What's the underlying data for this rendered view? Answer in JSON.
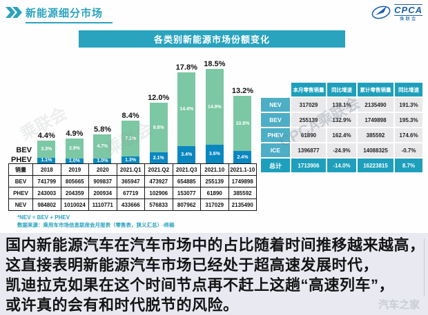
{
  "header": {
    "title": "新能源细分市场"
  },
  "logo": {
    "cpca": "CPCA",
    "sub": "乘联会"
  },
  "chart_data": {
    "type": "stacked-bar",
    "title": "各类别新能源市场份额变化",
    "categories": [
      "2018",
      "2019",
      "2020",
      "2021.Q1",
      "2021.Q2",
      "2021.Q3",
      "2021.10",
      "2021.1-10"
    ],
    "series": [
      {
        "name": "PHEV",
        "color": "#0b87c0",
        "values": [
          1.1,
          1.0,
          1.0,
          1.3,
          2.1,
          3.4,
          3.6,
          2.4
        ]
      },
      {
        "name": "BEV",
        "color": "#7cc7a4",
        "values": [
          3.3,
          3.9,
          4.7,
          7.1,
          9.8,
          14.4,
          14.9,
          10.8
        ]
      }
    ],
    "totals": [
      4.4,
      4.9,
      5.8,
      8.4,
      12.0,
      17.8,
      18.5,
      13.2
    ],
    "unit": "%",
    "ylim": [
      0,
      20
    ],
    "grid": false,
    "legend_position": "left-of-first-bar"
  },
  "left_table": {
    "corner": "销量",
    "headers": [
      "2018",
      "2019",
      "2020",
      "2021.Q1",
      "2021.Q2",
      "2021.Q3",
      "2021.10",
      "2021.1-10"
    ],
    "rows": [
      {
        "label": "BEV",
        "values": [
          "741799",
          "805665",
          "909837",
          "365947",
          "473927",
          "654885",
          "255139",
          "1749898"
        ]
      },
      {
        "label": "PHEV",
        "values": [
          "243003",
          "204359",
          "200934",
          "67719",
          "102906",
          "153077",
          "61890",
          "385592"
        ]
      },
      {
        "label": "NEV",
        "values": [
          "984802",
          "1010024",
          "1110771",
          "433666",
          "576833",
          "807962",
          "317029",
          "2135490"
        ]
      }
    ]
  },
  "footnote": {
    "line1": "*NEV = BEV + PHEV",
    "line2": "数据来源：乘用车市场信息联席会月报表（零售表，狭义汇总）-终稿"
  },
  "right_table": {
    "headers": [
      "",
      "本月零售销量",
      "同比增速",
      "累计零售销量",
      "同比增速"
    ],
    "rows": [
      {
        "label": "NEV",
        "cells": [
          "317029",
          "138.1%",
          "2135490",
          "191.3%"
        ],
        "type": "normal"
      },
      {
        "label": "BEV",
        "cells": [
          "255139",
          "132.9%",
          "1749898",
          "195.3%"
        ],
        "type": "normal"
      },
      {
        "label": "PHEV",
        "cells": [
          "61890",
          "162.4%",
          "385592",
          "174.6%"
        ],
        "type": "normal"
      },
      {
        "label": "ICE",
        "cells": [
          "1396877",
          "-24.9%",
          "14088325",
          "-0.7%"
        ],
        "type": "normal"
      },
      {
        "label": "总计",
        "cells": [
          "1713906",
          "-14.0%",
          "16223815",
          "8.7%"
        ],
        "type": "total"
      }
    ]
  },
  "commentary": {
    "lines": [
      "国内新能源汽车在汽车市场中的占比随着时间推移越来越高，",
      "这直接表明新能源汽车市场已经处于超高速发展时代，",
      "凯迪拉克如果在这个时间节点再不赶上这趟“高速列车”，",
      "或许真的会有和时代脱节的风险。"
    ]
  },
  "watermarks": {
    "table_watermark": "CPCA乘联会",
    "chart_watermark": "乘联会",
    "site_watermark": "汽车之家"
  },
  "colors": {
    "teal": "#29a3be",
    "teal_dark": "#1e9fbc",
    "teal_light": "#4daec6",
    "bev_green": "#7cc7a4",
    "phev_blue": "#0b87c0",
    "logo_blue": "#1b5faa",
    "bottom_bg": "#e8e9f1"
  }
}
